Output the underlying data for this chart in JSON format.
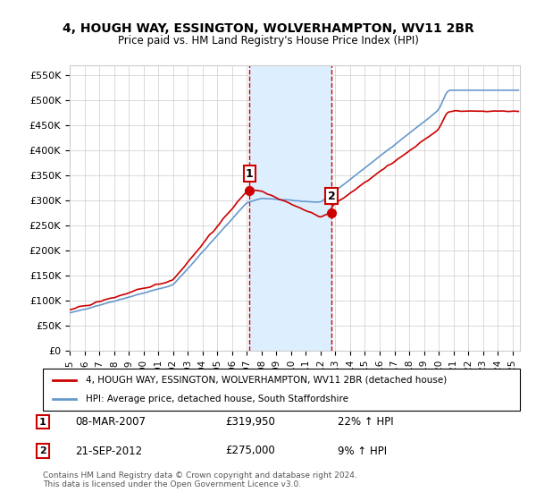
{
  "title": "4, HOUGH WAY, ESSINGTON, WOLVERHAMPTON, WV11 2BR",
  "subtitle": "Price paid vs. HM Land Registry's House Price Index (HPI)",
  "ylim": [
    0,
    570000
  ],
  "yticks": [
    0,
    50000,
    100000,
    150000,
    200000,
    250000,
    300000,
    350000,
    400000,
    450000,
    500000,
    550000
  ],
  "xlim_start": 1995.0,
  "xlim_end": 2025.5,
  "transaction1_x": 2007.19,
  "transaction1_y": 319950,
  "transaction2_x": 2012.73,
  "transaction2_y": 275000,
  "transaction1_label": "08-MAR-2007",
  "transaction1_price": "£319,950",
  "transaction1_hpi": "22% ↑ HPI",
  "transaction2_label": "21-SEP-2012",
  "transaction2_price": "£275,000",
  "transaction2_hpi": "9% ↑ HPI",
  "red_line_color": "#cc0000",
  "blue_line_color": "#6699cc",
  "shade_color": "#ddeeff",
  "grid_color": "#cccccc",
  "bg_color": "#ffffff",
  "legend_label_red": "4, HOUGH WAY, ESSINGTON, WOLVERHAMPTON, WV11 2BR (detached house)",
  "legend_label_blue": "HPI: Average price, detached house, South Staffordshire",
  "footer": "Contains HM Land Registry data © Crown copyright and database right 2024.\nThis data is licensed under the Open Government Licence v3.0."
}
